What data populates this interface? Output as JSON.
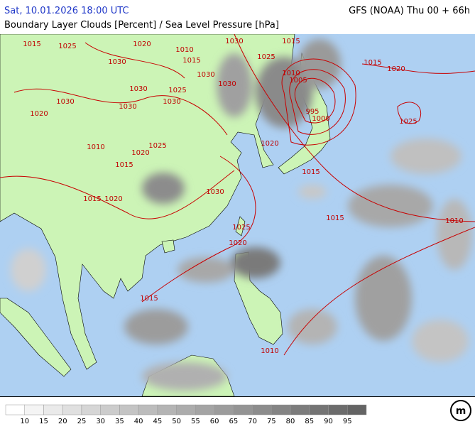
{
  "header": {
    "datetime": "Sat, 10.01.2026 18:00 UTC",
    "model": "GFS (NOAA) Thu 00 + 66h",
    "title": "Boundary Layer Clouds [Percent] / Sea Level Pressure [hPa]"
  },
  "isobar_labels": [
    1015,
    1025,
    1020,
    1030,
    1010,
    1015,
    1030,
    1015,
    1025,
    1030,
    1030,
    1010,
    1015,
    1020,
    1005,
    995,
    1000,
    1025,
    1020,
    1030,
    1030,
    1030,
    1025,
    1030,
    1010,
    1020,
    1025,
    1015,
    1020,
    1015,
    1030,
    1015,
    1020,
    1015,
    1010,
    1025,
    1020,
    1015,
    1010
  ],
  "legend": {
    "colors": [
      "#ffffff",
      "#f4f4f4",
      "#eaeaea",
      "#e0e0e0",
      "#d6d6d6",
      "#cccccc",
      "#c4c4c4",
      "#bcbcbc",
      "#b4b4b4",
      "#acacac",
      "#a4a4a4",
      "#9c9c9c",
      "#949494",
      "#8c8c8c",
      "#848484",
      "#7c7c7c",
      "#747474",
      "#6c6c6c",
      "#646464"
    ],
    "labels": [
      10,
      15,
      20,
      25,
      30,
      35,
      40,
      45,
      50,
      55,
      60,
      65,
      70,
      75,
      80,
      85,
      90,
      95
    ]
  }
}
